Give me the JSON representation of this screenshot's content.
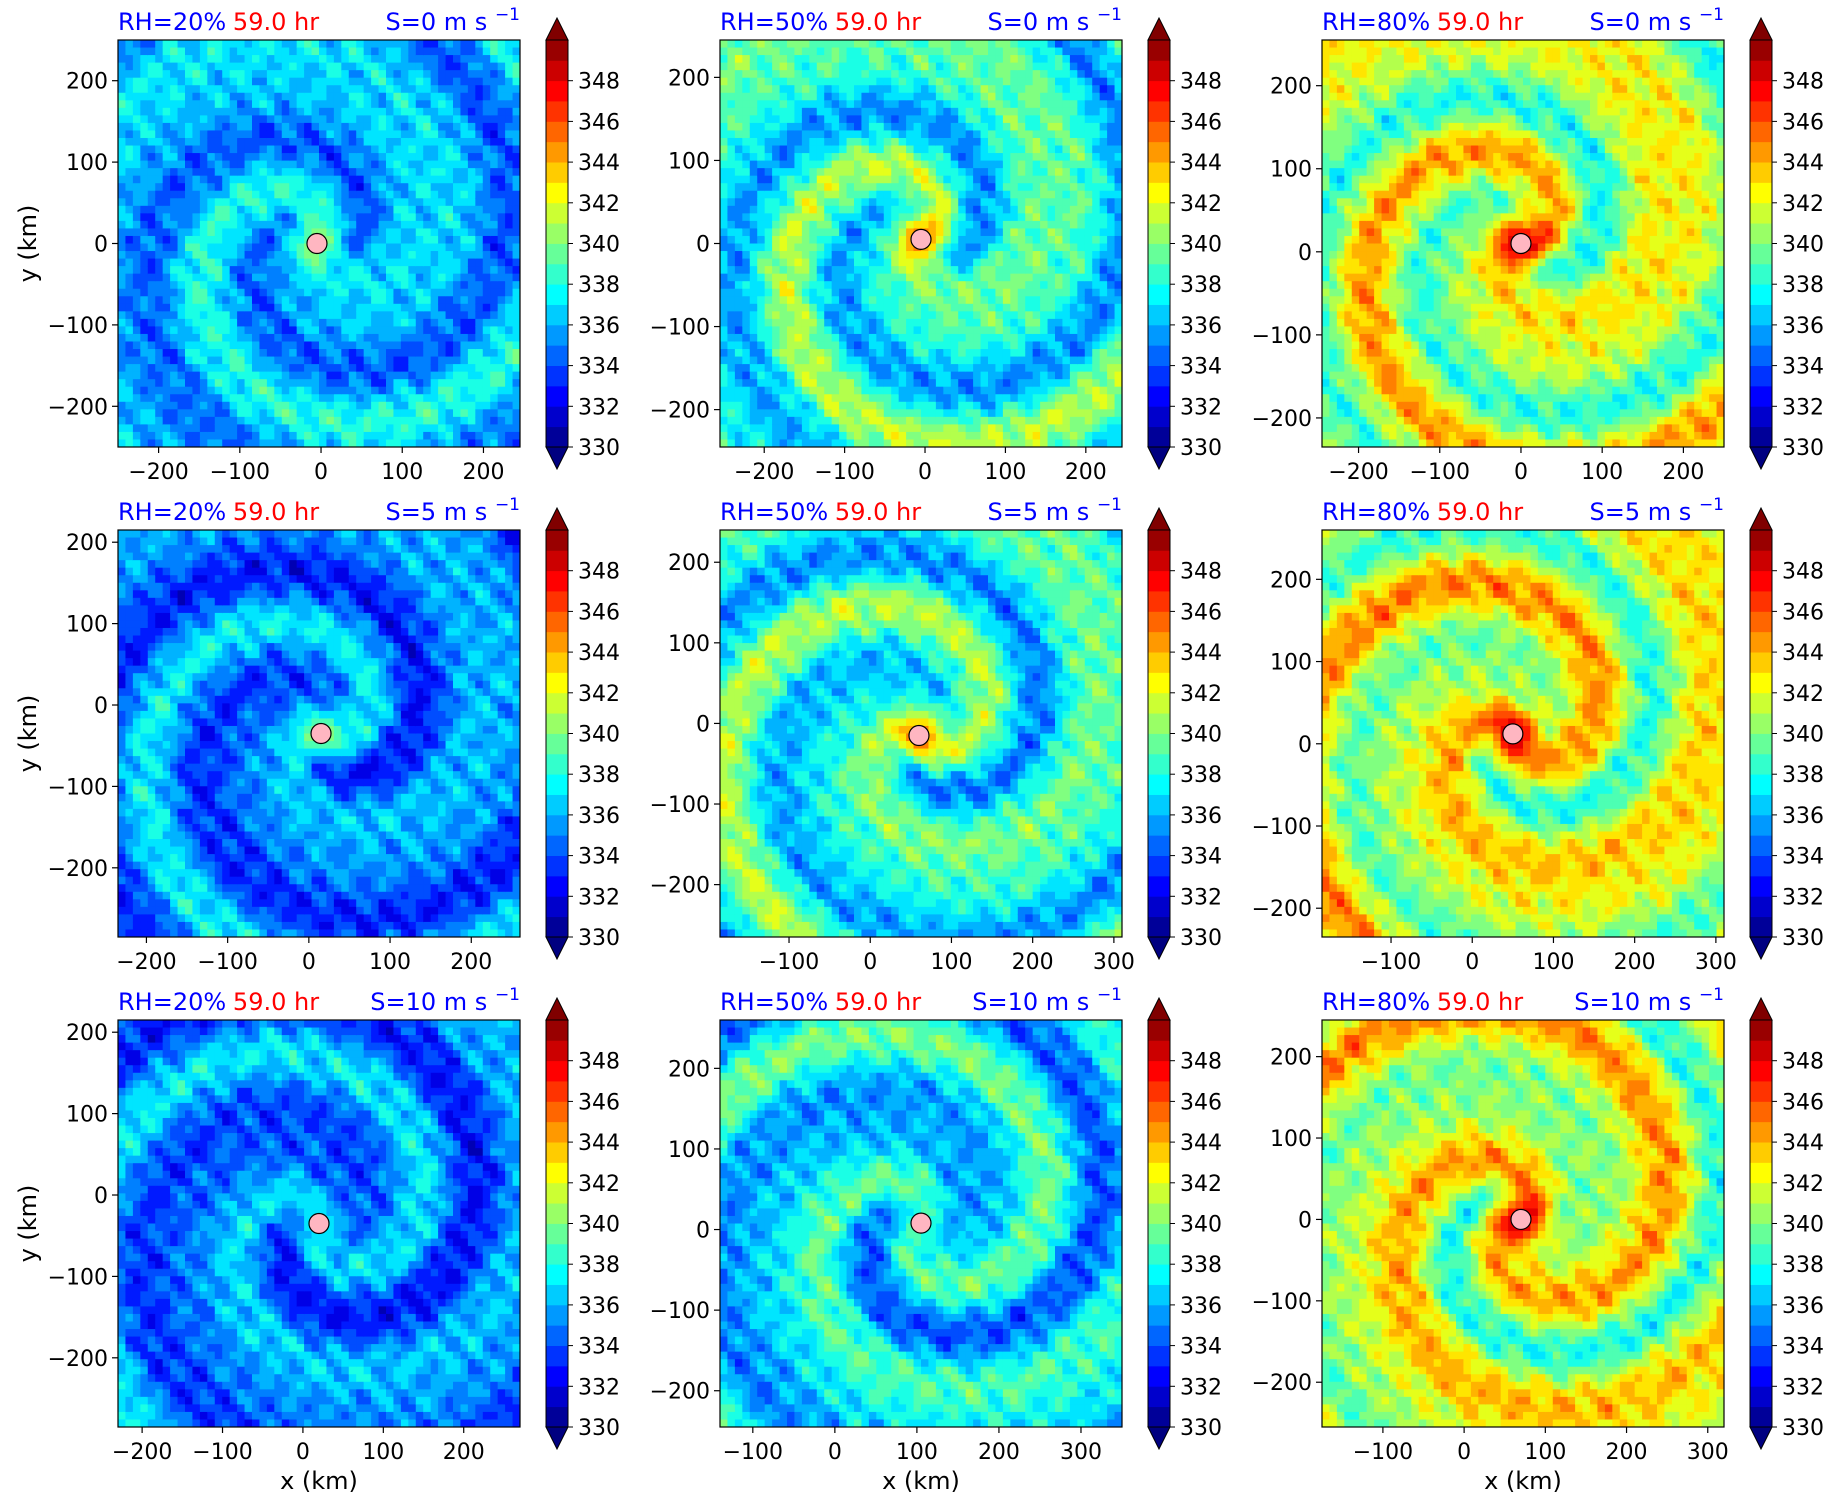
{
  "figure": {
    "xlabel": "x (km)",
    "ylabel": "y (km)",
    "time_label": "59.0 hr",
    "title_colors": {
      "rh": "#0000ff",
      "time": "#ff0000",
      "shear": "#0000ff"
    },
    "center_marker_color": "#ffb6c1"
  },
  "colorbar": {
    "min": 330,
    "max": 350,
    "step": 1,
    "tick_values": [
      330,
      332,
      334,
      336,
      338,
      340,
      342,
      344,
      346,
      348
    ],
    "tick_labels": [
      "330",
      "332",
      "334",
      "336",
      "338",
      "340",
      "342",
      "344",
      "346",
      "348"
    ],
    "colormap": "jet",
    "extend": "both"
  },
  "chart_data": [
    {
      "type": "heatmap",
      "rh_label": "RH=20%",
      "time_label": "59.0 hr",
      "shear_label": "S=0 m s",
      "shear_exp": "−1",
      "xlim": [
        -250,
        245
      ],
      "ylim": [
        -250,
        250
      ],
      "xticks": [
        -200,
        -100,
        0,
        100,
        200
      ],
      "xtick_labels": [
        "−200",
        "−100",
        "0",
        "100",
        "200"
      ],
      "yticks": [
        -200,
        -100,
        0,
        100,
        200
      ],
      "ytick_labels": [
        "−200",
        "−100",
        "0",
        "100",
        "200"
      ],
      "center": [
        -5,
        0
      ],
      "base_value": 336.5,
      "spiral_amp": 2.2,
      "eye_value": 341,
      "show_xlabel": false,
      "show_ylabel": true
    },
    {
      "type": "heatmap",
      "rh_label": "RH=50%",
      "time_label": "59.0 hr",
      "shear_label": "S=0 m s",
      "shear_exp": "−1",
      "xlim": [
        -255,
        245
      ],
      "ylim": [
        -245,
        245
      ],
      "xticks": [
        -200,
        -100,
        0,
        100,
        200
      ],
      "xtick_labels": [
        "−200",
        "−100",
        "0",
        "100",
        "200"
      ],
      "yticks": [
        -200,
        -100,
        0,
        100,
        200
      ],
      "ytick_labels": [
        "−200",
        "−100",
        "0",
        "100",
        "200"
      ],
      "center": [
        -5,
        5
      ],
      "base_value": 338.5,
      "spiral_amp": 3.2,
      "eye_value": 346,
      "show_xlabel": false,
      "show_ylabel": false
    },
    {
      "type": "heatmap",
      "rh_label": "RH=80%",
      "time_label": "59.0 hr",
      "shear_label": "S=0 m s",
      "shear_exp": "−1",
      "xlim": [
        -245,
        250
      ],
      "ylim": [
        -235,
        255
      ],
      "xticks": [
        -200,
        -100,
        0,
        100,
        200
      ],
      "xtick_labels": [
        "−200",
        "−100",
        "0",
        "100",
        "200"
      ],
      "yticks": [
        -200,
        -100,
        0,
        100,
        200
      ],
      "ytick_labels": [
        "−200",
        "−100",
        "0",
        "100",
        "200"
      ],
      "center": [
        0,
        10
      ],
      "base_value": 341.5,
      "spiral_amp": 3.5,
      "eye_value": 349.5,
      "show_xlabel": false,
      "show_ylabel": false
    },
    {
      "type": "heatmap",
      "rh_label": "RH=20%",
      "time_label": "59.0 hr",
      "shear_label": "S=5 m s",
      "shear_exp": "−1",
      "xlim": [
        -235,
        260
      ],
      "ylim": [
        -285,
        215
      ],
      "xticks": [
        -200,
        -100,
        0,
        100,
        200
      ],
      "xtick_labels": [
        "−200",
        "−100",
        "0",
        "100",
        "200"
      ],
      "yticks": [
        -200,
        -100,
        0,
        100,
        200
      ],
      "ytick_labels": [
        "−200",
        "−100",
        "0",
        "100",
        "200"
      ],
      "center": [
        15,
        -35
      ],
      "base_value": 335.5,
      "spiral_amp": 2.5,
      "eye_value": 341,
      "show_xlabel": false,
      "show_ylabel": true
    },
    {
      "type": "heatmap",
      "rh_label": "RH=50%",
      "time_label": "59.0 hr",
      "shear_label": "S=5 m s",
      "shear_exp": "−1",
      "xlim": [
        -185,
        310
      ],
      "ylim": [
        -265,
        240
      ],
      "xticks": [
        -100,
        0,
        100,
        200,
        300
      ],
      "xtick_labels": [
        "−100",
        "0",
        "100",
        "200",
        "300"
      ],
      "yticks": [
        -200,
        -100,
        0,
        100,
        200
      ],
      "ytick_labels": [
        "−200",
        "−100",
        "0",
        "100",
        "200"
      ],
      "center": [
        60,
        -15
      ],
      "base_value": 338.5,
      "spiral_amp": 3.2,
      "eye_value": 346,
      "show_xlabel": false,
      "show_ylabel": false
    },
    {
      "type": "heatmap",
      "rh_label": "RH=80%",
      "time_label": "59.0 hr",
      "shear_label": "S=5 m s",
      "shear_exp": "−1",
      "xlim": [
        -185,
        310
      ],
      "ylim": [
        -235,
        260
      ],
      "xticks": [
        -100,
        0,
        100,
        200,
        300
      ],
      "xtick_labels": [
        "−100",
        "0",
        "100",
        "200",
        "300"
      ],
      "yticks": [
        -200,
        -100,
        0,
        100,
        200
      ],
      "ytick_labels": [
        "−200",
        "−100",
        "0",
        "100",
        "200"
      ],
      "center": [
        50,
        12
      ],
      "base_value": 342,
      "spiral_amp": 3.5,
      "eye_value": 349.5,
      "show_xlabel": false,
      "show_ylabel": false
    },
    {
      "type": "heatmap",
      "rh_label": "RH=20%",
      "time_label": "59.0 hr",
      "shear_label": "S=10 m s",
      "shear_exp": "−1",
      "xlim": [
        -230,
        270
      ],
      "ylim": [
        -285,
        215
      ],
      "xticks": [
        -200,
        -100,
        0,
        100,
        200
      ],
      "xtick_labels": [
        "−200",
        "−100",
        "0",
        "100",
        "200"
      ],
      "yticks": [
        -200,
        -100,
        0,
        100,
        200
      ],
      "ytick_labels": [
        "−200",
        "−100",
        "0",
        "100",
        "200"
      ],
      "center": [
        20,
        -35
      ],
      "base_value": 335.5,
      "spiral_amp": 2.4,
      "eye_value": 338,
      "show_xlabel": true,
      "show_ylabel": true
    },
    {
      "type": "heatmap",
      "rh_label": "RH=50%",
      "time_label": "59.0 hr",
      "shear_label": "S=10 m s",
      "shear_exp": "−1",
      "xlim": [
        -140,
        350
      ],
      "ylim": [
        -245,
        260
      ],
      "xticks": [
        -100,
        0,
        100,
        200,
        300
      ],
      "xtick_labels": [
        "−100",
        "0",
        "100",
        "200",
        "300"
      ],
      "yticks": [
        -200,
        -100,
        0,
        100,
        200
      ],
      "ytick_labels": [
        "−200",
        "−100",
        "0",
        "100",
        "200"
      ],
      "center": [
        105,
        8
      ],
      "base_value": 337.5,
      "spiral_amp": 3.0,
      "eye_value": 339,
      "show_xlabel": true,
      "show_ylabel": false
    },
    {
      "type": "heatmap",
      "rh_label": "RH=80%",
      "time_label": "59.0 hr",
      "shear_label": "S=10 m s",
      "shear_exp": "−1",
      "xlim": [
        -175,
        320
      ],
      "ylim": [
        -255,
        245
      ],
      "xticks": [
        -100,
        0,
        100,
        200,
        300
      ],
      "xtick_labels": [
        "−100",
        "0",
        "100",
        "200",
        "300"
      ],
      "yticks": [
        -200,
        -100,
        0,
        100,
        200
      ],
      "ytick_labels": [
        "−200",
        "−100",
        "0",
        "100",
        "200"
      ],
      "center": [
        70,
        0
      ],
      "base_value": 342,
      "spiral_amp": 3.5,
      "eye_value": 349.5,
      "show_xlabel": true,
      "show_ylabel": false
    }
  ]
}
